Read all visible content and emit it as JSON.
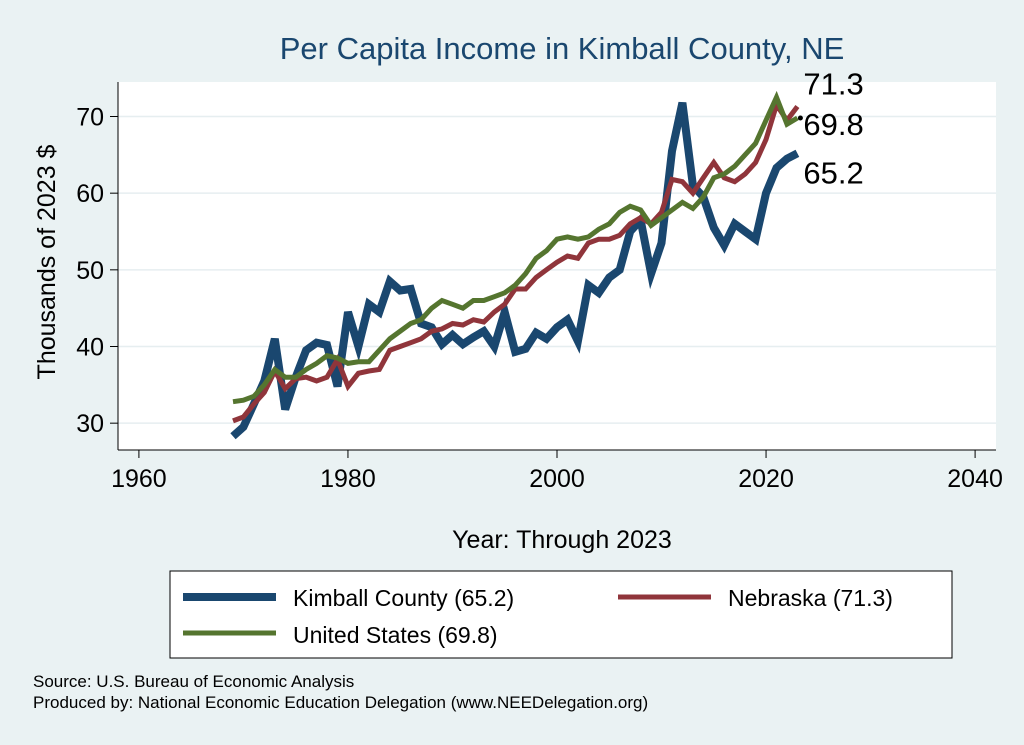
{
  "chart_data": {
    "type": "line",
    "title": "Per Capita Income in Kimball County, NE",
    "xlabel": "Year: Through 2023",
    "ylabel": "Thousands of 2023 $",
    "xlim": [
      1958,
      2042
    ],
    "ylim": [
      26.5,
      74.5
    ],
    "xticks": [
      1960,
      1980,
      2000,
      2020,
      2040
    ],
    "yticks": [
      30,
      40,
      50,
      60,
      70
    ],
    "grid": true,
    "x": [
      1969,
      1970,
      1971,
      1972,
      1973,
      1974,
      1975,
      1976,
      1977,
      1978,
      1979,
      1980,
      1981,
      1982,
      1983,
      1984,
      1985,
      1986,
      1987,
      1988,
      1989,
      1990,
      1991,
      1992,
      1993,
      1994,
      1995,
      1996,
      1997,
      1998,
      1999,
      2000,
      2001,
      2002,
      2003,
      2004,
      2005,
      2006,
      2007,
      2008,
      2009,
      2010,
      2011,
      2012,
      2013,
      2014,
      2015,
      2016,
      2017,
      2018,
      2019,
      2020,
      2021,
      2022,
      2023
    ],
    "series": [
      {
        "name": "Kimball County",
        "legend": "Kimball County (65.2)",
        "color": "#1a476f",
        "width": 8,
        "end_label": "65.2",
        "values": [
          28.3,
          29.5,
          32.5,
          35.5,
          41.0,
          31.8,
          36.0,
          39.5,
          40.5,
          40.2,
          34.8,
          44.5,
          40.0,
          45.5,
          44.5,
          48.5,
          47.3,
          47.5,
          43.0,
          42.5,
          40.3,
          41.5,
          40.3,
          41.2,
          42.0,
          40.0,
          44.5,
          39.3,
          39.7,
          41.8,
          41.0,
          42.5,
          43.5,
          40.7,
          48.0,
          47.0,
          49.0,
          50.0,
          55.0,
          56.5,
          49.5,
          53.5,
          65.5,
          71.8,
          61.0,
          59.5,
          55.5,
          53.2,
          56.0,
          55.0,
          54.0,
          60.0,
          63.3,
          64.5,
          65.2
        ]
      },
      {
        "name": "Nebraska",
        "legend": "Nebraska (71.3)",
        "color": "#90353b",
        "width": 5,
        "end_label": "71.3",
        "values": [
          30.3,
          30.8,
          32.5,
          34.0,
          36.8,
          34.5,
          35.8,
          36.0,
          35.5,
          36.0,
          38.3,
          34.8,
          36.5,
          36.8,
          37.0,
          39.5,
          40.0,
          40.5,
          41.0,
          42.0,
          42.3,
          43.0,
          42.8,
          43.5,
          43.2,
          44.5,
          45.5,
          47.5,
          47.5,
          49.0,
          50.0,
          51.0,
          51.8,
          51.5,
          53.5,
          54.0,
          54.0,
          54.5,
          56.0,
          56.8,
          56.0,
          57.5,
          61.8,
          61.5,
          60.0,
          62.0,
          64.0,
          62.0,
          61.5,
          62.5,
          64.0,
          67.0,
          71.5,
          69.5,
          71.3
        ]
      },
      {
        "name": "United States",
        "legend": "United States (69.8)",
        "color": "#55752f",
        "width": 5,
        "end_label": "69.8",
        "values": [
          32.8,
          33.0,
          33.5,
          35.0,
          37.0,
          36.0,
          36.0,
          37.0,
          37.8,
          38.8,
          38.5,
          37.8,
          38.0,
          38.0,
          39.5,
          41.0,
          42.0,
          43.0,
          43.5,
          45.0,
          46.0,
          45.5,
          45.0,
          46.0,
          46.0,
          46.5,
          47.0,
          48.0,
          49.5,
          51.5,
          52.5,
          54.0,
          54.3,
          54.0,
          54.3,
          55.3,
          56.0,
          57.5,
          58.3,
          57.8,
          55.8,
          56.8,
          57.8,
          58.8,
          58.0,
          59.5,
          62.0,
          62.5,
          63.5,
          65.0,
          66.5,
          69.5,
          72.5,
          69.0,
          69.8
        ]
      }
    ],
    "legend_position": "bottom"
  },
  "footer": {
    "source": "Source: U.S. Bureau of Economic Analysis",
    "produced_by": "Produced by: National Economic Education Delegation (www.NEEDelegation.org)"
  }
}
